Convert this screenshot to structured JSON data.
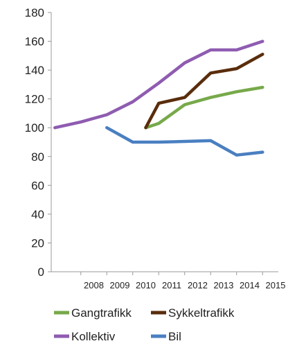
{
  "chart_data": {
    "type": "line",
    "title": "",
    "xlabel": "",
    "ylabel": "",
    "ylim": [
      0,
      180
    ],
    "y_ticks": [
      "0",
      "20",
      "40",
      "60",
      "80",
      "100",
      "120",
      "140",
      "160",
      "180"
    ],
    "categories": [
      "2008",
      "2009",
      "2010",
      "2011",
      "2012",
      "2013",
      "2014",
      "2015"
    ],
    "x_tick_labels": [
      "2008",
      "2009",
      "2010",
      "2011",
      "2012",
      "2013",
      "2014",
      "2015"
    ],
    "grid": false,
    "legend_position": "bottom",
    "series": [
      {
        "name": "Gangtrafikk",
        "color": "#77a94a",
        "points": [
          [
            2010,
            100
          ],
          [
            2010.5,
            103
          ],
          [
            2011.5,
            116
          ],
          [
            2012.5,
            121
          ],
          [
            2013.5,
            125
          ],
          [
            2014.5,
            128
          ]
        ]
      },
      {
        "name": "Sykkeltrafikk",
        "color": "#5a2d0c",
        "points": [
          [
            2010,
            100
          ],
          [
            2010.5,
            117
          ],
          [
            2011.5,
            121
          ],
          [
            2012.5,
            138
          ],
          [
            2013.5,
            141
          ],
          [
            2014.5,
            151
          ]
        ]
      },
      {
        "name": "Kollektiv",
        "color": "#8f5cb1",
        "points": [
          [
            2006.5,
            100
          ],
          [
            2007.5,
            104
          ],
          [
            2008.5,
            109
          ],
          [
            2009.5,
            118
          ],
          [
            2010.5,
            131
          ],
          [
            2011.5,
            145
          ],
          [
            2012.5,
            154
          ],
          [
            2013.5,
            154
          ],
          [
            2014.5,
            160
          ]
        ]
      },
      {
        "name": "Bil",
        "color": "#4a7fc1",
        "points": [
          [
            2008.5,
            100
          ],
          [
            2009.5,
            90
          ],
          [
            2010.5,
            90
          ],
          [
            2011.5,
            90.5
          ],
          [
            2012.5,
            91
          ],
          [
            2013.5,
            81
          ],
          [
            2014.5,
            83
          ]
        ]
      }
    ],
    "legend": [
      {
        "label": "Gangtrafikk",
        "color": "#77a94a"
      },
      {
        "label": "Sykkeltrafikk",
        "color": "#5a2d0c"
      },
      {
        "label": "Kollektiv",
        "color": "#8f5cb1"
      },
      {
        "label": "Bil",
        "color": "#4a7fc1"
      }
    ]
  }
}
